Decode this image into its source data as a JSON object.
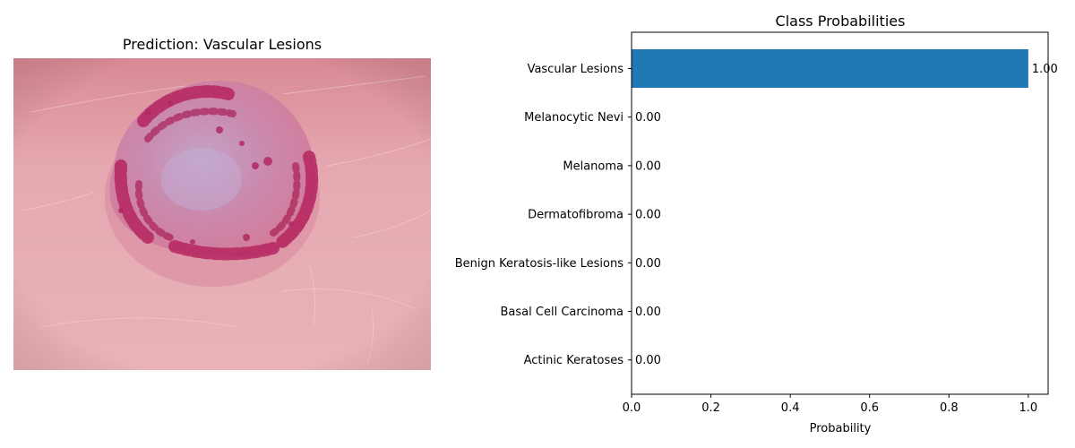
{
  "image_panel": {
    "title": "Prediction: Vascular Lesions"
  },
  "chart_data": {
    "type": "bar",
    "orientation": "horizontal",
    "title": "Class Probabilities",
    "xlabel": "Probability",
    "ylabel": "",
    "xlim": [
      0.0,
      1.05
    ],
    "xticks": [
      0.0,
      0.2,
      0.4,
      0.6,
      0.8,
      1.0
    ],
    "xtick_labels": [
      "0.0",
      "0.2",
      "0.4",
      "0.6",
      "0.8",
      "1.0"
    ],
    "categories": [
      "Vascular Lesions",
      "Melanocytic Nevi",
      "Melanoma",
      "Dermatofibroma",
      "Benign Keratosis-like Lesions",
      "Basal Cell Carcinoma",
      "Actinic Keratoses"
    ],
    "values": [
      1.0,
      0.0,
      0.0,
      0.0,
      0.0,
      0.0,
      0.0
    ],
    "data_labels": [
      "1.00",
      "0.00",
      "0.00",
      "0.00",
      "0.00",
      "0.00",
      "0.00"
    ],
    "bar_color": "#1f77b4",
    "grid": false
  }
}
